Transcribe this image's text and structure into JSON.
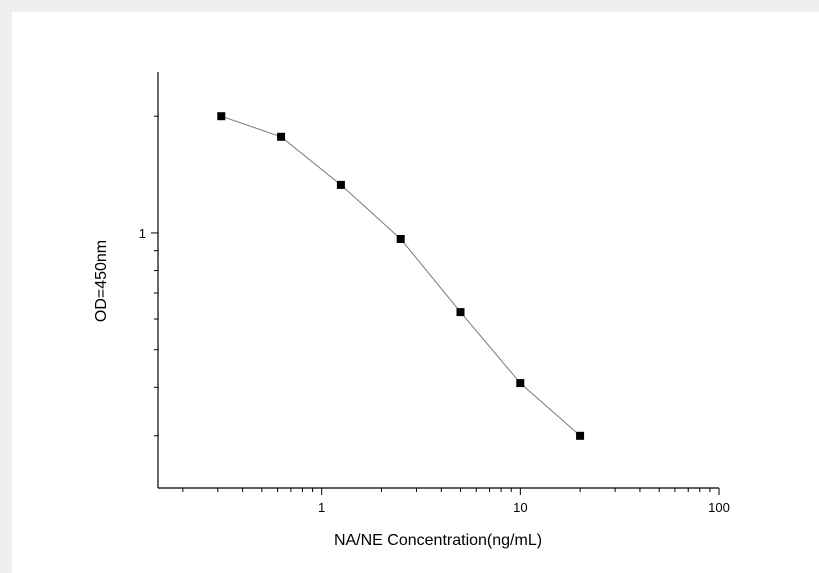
{
  "chart_data": {
    "type": "scatter",
    "title": "",
    "xlabel": "NA/NE Concentration(ng/mL)",
    "ylabel": "OD=450nm",
    "xscale": "log",
    "yscale": "log",
    "xlim": [
      0.15,
      100
    ],
    "ylim": [
      0.22,
      2.6
    ],
    "x_tick_labels": [
      {
        "value": 1,
        "label": "1"
      },
      {
        "value": 10,
        "label": "10"
      },
      {
        "value": 100,
        "label": "100"
      }
    ],
    "y_tick_labels": [
      {
        "value": 1,
        "label": "1"
      }
    ],
    "legend": "none",
    "grid": false,
    "colors": {
      "marker": "#000000",
      "line": "#7a7a7a"
    },
    "series": [
      {
        "x": [
          0.3125,
          0.625,
          1.25,
          2.5,
          5,
          10,
          20
        ],
        "y": [
          2.0,
          1.77,
          1.33,
          0.965,
          0.625,
          0.41,
          0.3
        ]
      }
    ]
  }
}
